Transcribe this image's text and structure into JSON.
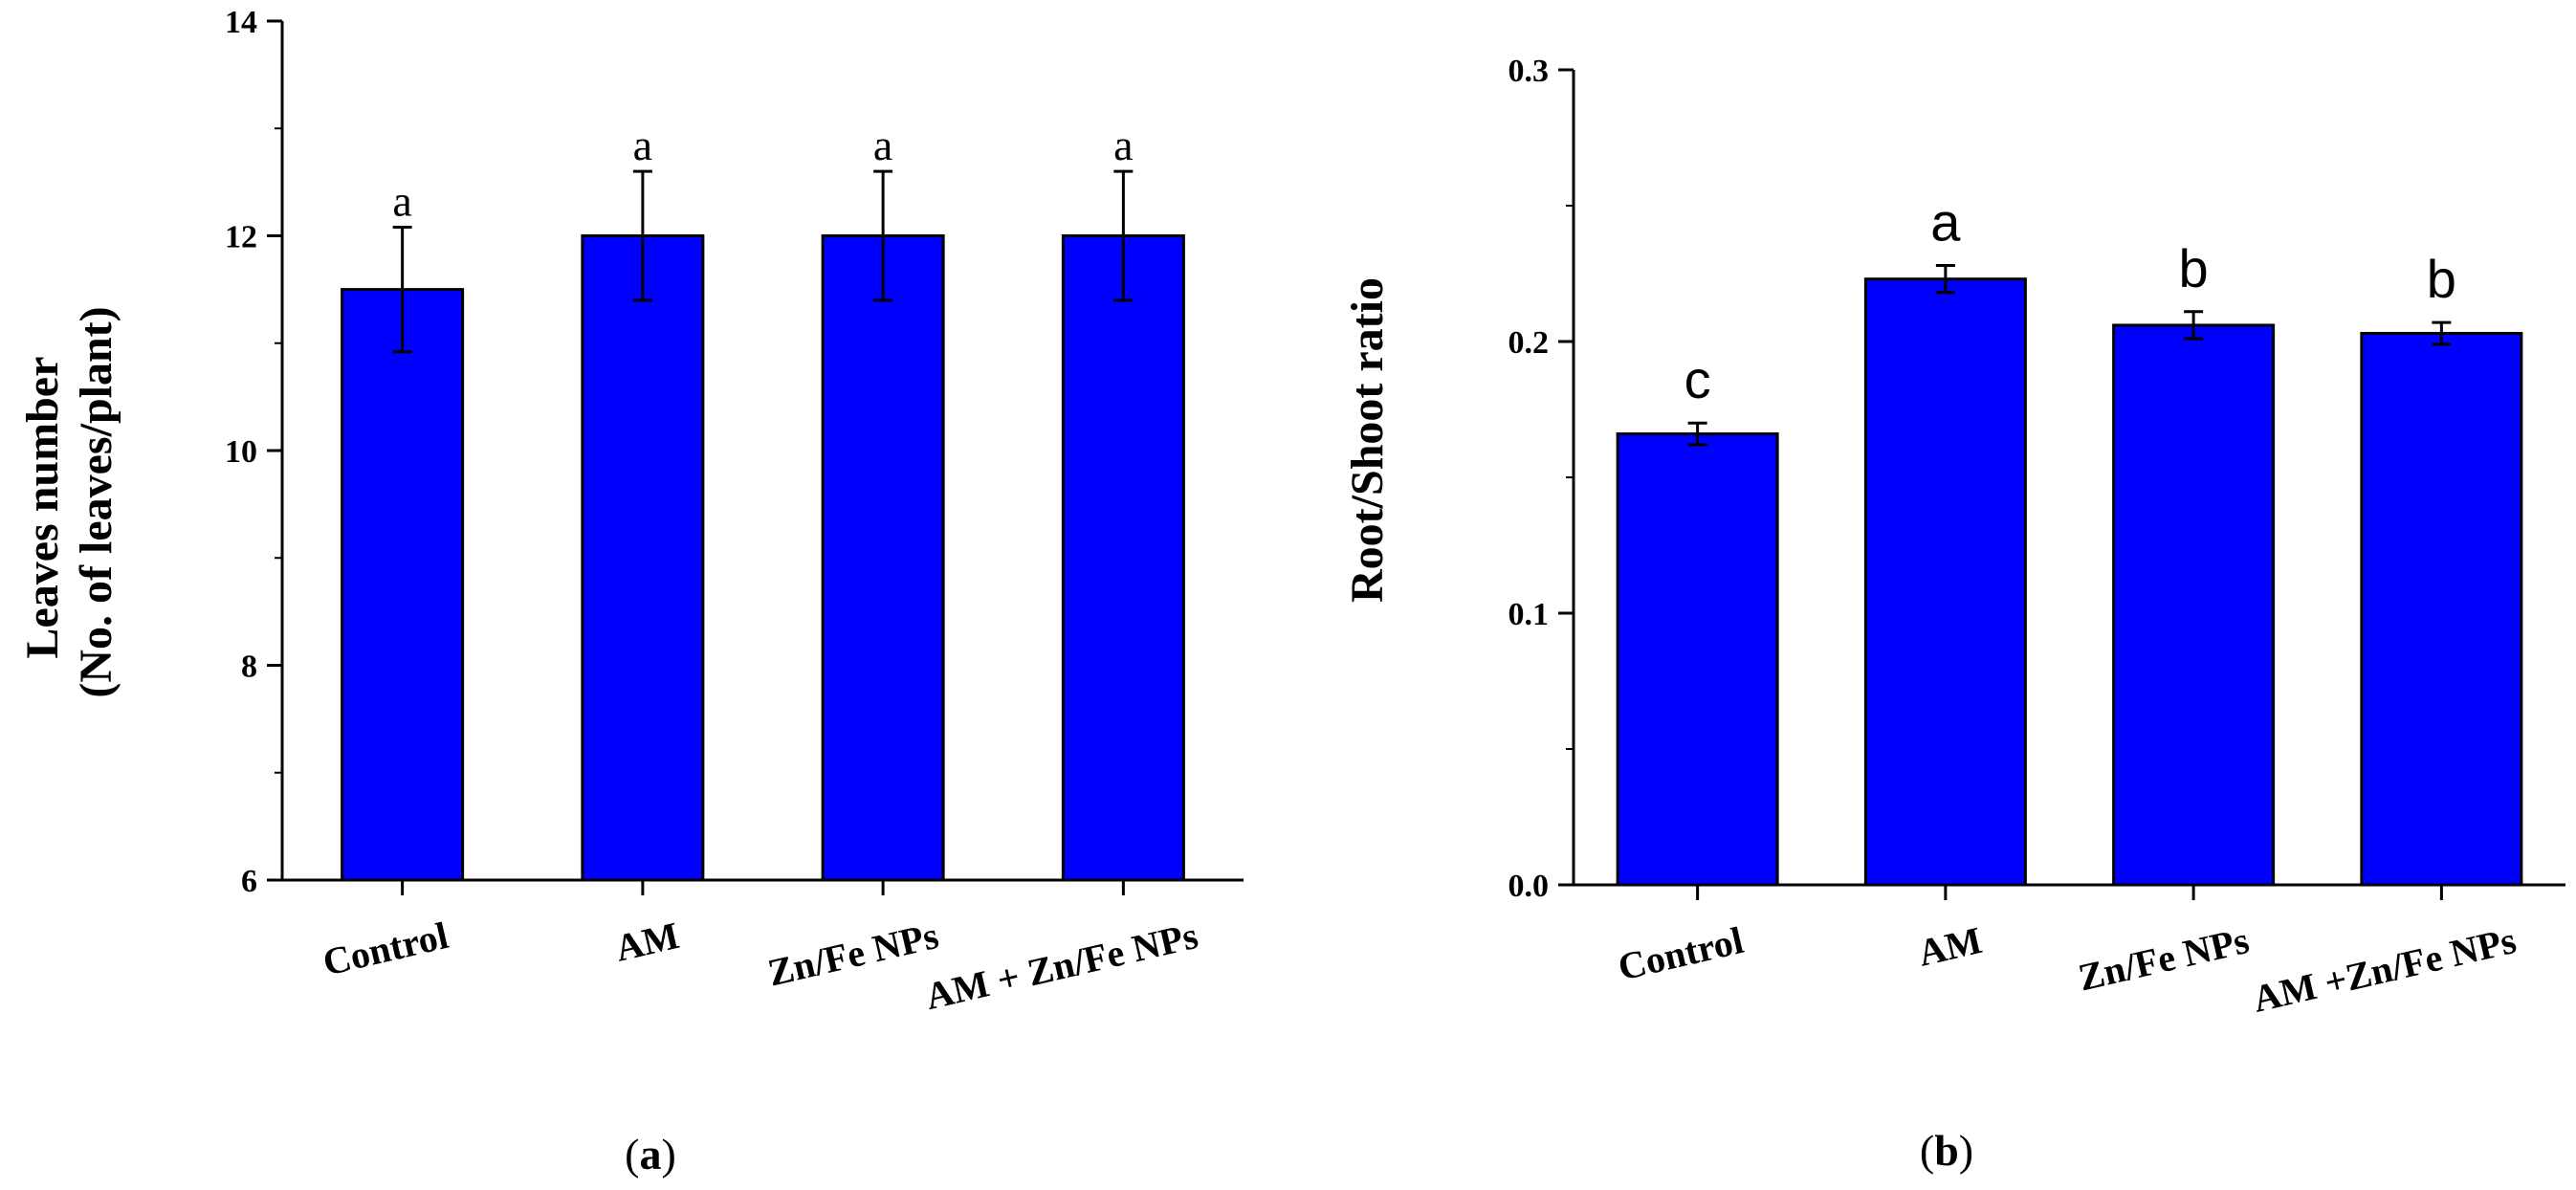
{
  "chart_data": [
    {
      "type": "bar",
      "panel_label_prefix": "(",
      "panel_label": "a",
      "panel_label_suffix": ")",
      "ylabel_line1": "Leaves number",
      "ylabel_line2": "(No. of leaves/plant)",
      "xlabel": "",
      "ylim": [
        6,
        14
      ],
      "yticks": [
        6,
        8,
        10,
        12,
        14
      ],
      "ytick_labels": [
        "6",
        "8",
        "10",
        "12",
        "14"
      ],
      "categories": [
        "Control",
        "AM",
        "Zn/Fe NPs",
        "AM + Zn/Fe NPs"
      ],
      "values": [
        11.5,
        12.0,
        12.0,
        12.0
      ],
      "errors": [
        0.58,
        0.6,
        0.6,
        0.6
      ],
      "significance": [
        "a",
        "a",
        "a",
        "a"
      ],
      "bar_color": "#0000ff"
    },
    {
      "type": "bar",
      "panel_label_prefix": "(",
      "panel_label": "b",
      "panel_label_suffix": ")",
      "ylabel": "Root/Shoot ratio",
      "xlabel": "",
      "ylim": [
        0.0,
        0.3
      ],
      "yticks": [
        0.0,
        0.1,
        0.2,
        0.3
      ],
      "ytick_labels": [
        "0.0",
        "0.1",
        "0.2",
        "0.3"
      ],
      "categories": [
        "Control",
        "AM",
        "Zn/Fe NPs",
        "AM +Zn/Fe NPs"
      ],
      "values": [
        0.166,
        0.223,
        0.206,
        0.203
      ],
      "errors": [
        0.004,
        0.005,
        0.005,
        0.004
      ],
      "significance": [
        "c",
        "a",
        "b",
        "b"
      ],
      "bar_color": "#0000ff"
    }
  ]
}
